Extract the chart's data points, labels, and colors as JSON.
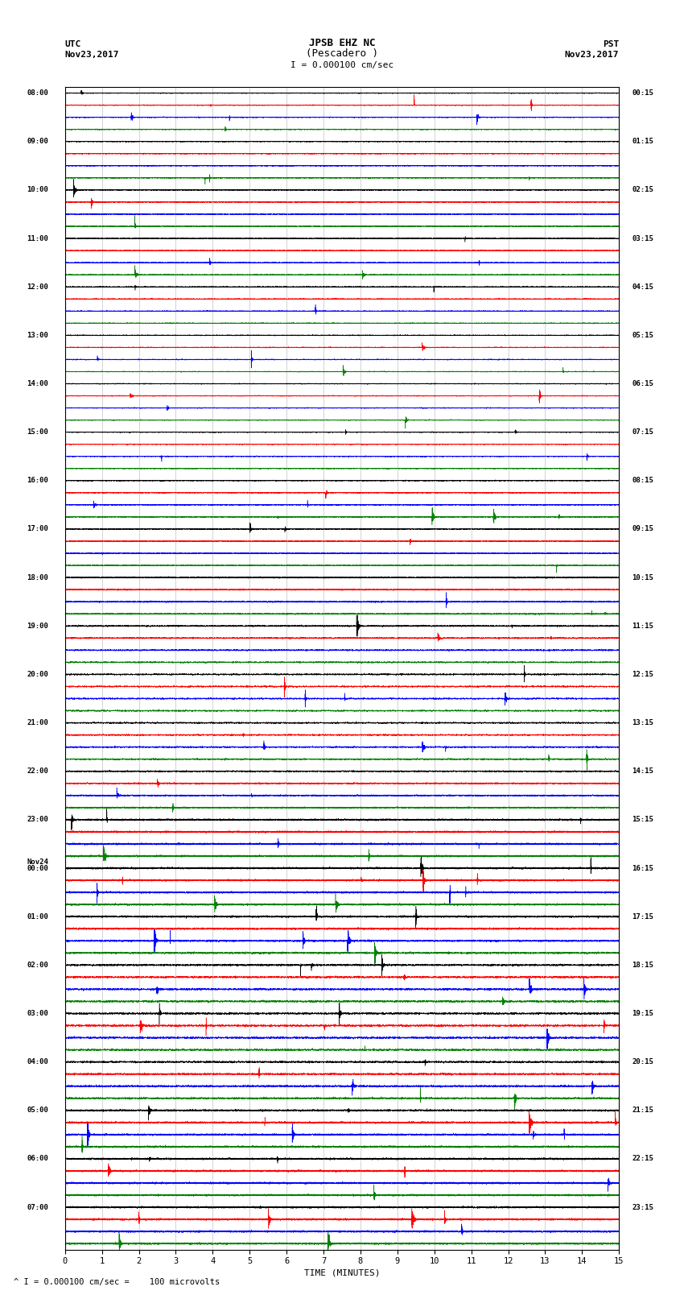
{
  "title_line1": "JPSB EHZ NC",
  "title_line2": "(Pescadero )",
  "scale_label": "I = 0.000100 cm/sec",
  "left_header_line1": "UTC",
  "left_header_line2": "Nov23,2017",
  "right_header_line1": "PST",
  "right_header_line2": "Nov23,2017",
  "footer_note": "^ I = 0.000100 cm/sec =    100 microvolts",
  "xlabel": "TIME (MINUTES)",
  "background_color": "#ffffff",
  "trace_colors": [
    "black",
    "red",
    "blue",
    "green"
  ],
  "traces_per_row": 4,
  "minutes": 15,
  "left_labels": [
    "08:00",
    "09:00",
    "10:00",
    "11:00",
    "12:00",
    "13:00",
    "14:00",
    "15:00",
    "16:00",
    "17:00",
    "18:00",
    "19:00",
    "20:00",
    "21:00",
    "22:00",
    "23:00",
    "Nov24",
    "00:00",
    "01:00",
    "02:00",
    "03:00",
    "04:00",
    "05:00",
    "06:00",
    "07:00"
  ],
  "right_labels": [
    "00:15",
    "01:15",
    "02:15",
    "03:15",
    "04:15",
    "05:15",
    "06:15",
    "07:15",
    "08:15",
    "09:15",
    "10:15",
    "11:15",
    "12:15",
    "13:15",
    "14:15",
    "15:15",
    "16:15",
    "17:15",
    "18:15",
    "19:15",
    "20:15",
    "21:15",
    "22:15",
    "23:15"
  ],
  "num_hour_groups": 24,
  "fig_width": 8.5,
  "fig_height": 16.13,
  "dpi": 100,
  "seed": 12345
}
